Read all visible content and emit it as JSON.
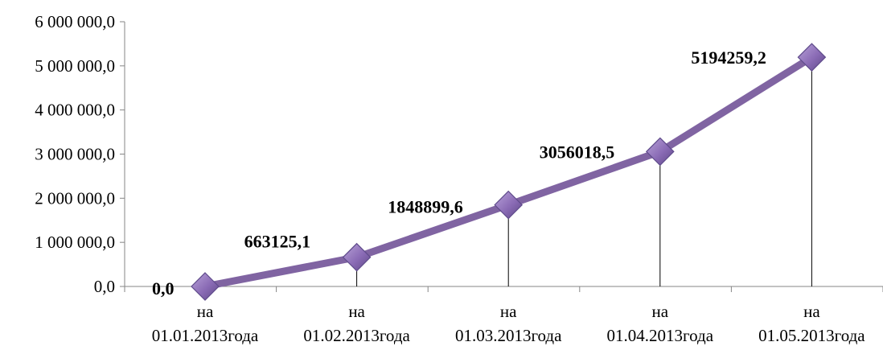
{
  "chart_data": {
    "type": "line",
    "categories": [
      "на 01.01.2013года",
      "на 01.02.2013года",
      "на 01.03.2013года",
      "на 01.04.2013года",
      "на 01.05.2013года"
    ],
    "category_lines": [
      [
        "на",
        "01.01.2013года"
      ],
      [
        "на",
        "01.02.2013года"
      ],
      [
        "на",
        "01.03.2013года"
      ],
      [
        "на",
        "01.04.2013года"
      ],
      [
        "на",
        "01.05.2013года"
      ]
    ],
    "values": [
      0.0,
      663125.1,
      1848899.6,
      3056018.5,
      5194259.2
    ],
    "data_labels": [
      "0,0",
      "663125,1",
      "1848899,6",
      "3056018,5",
      "5194259,2"
    ],
    "y_ticks": [
      0,
      1000000,
      2000000,
      3000000,
      4000000,
      5000000,
      6000000
    ],
    "y_tick_labels": [
      "0,0",
      "1 000 000,0",
      "2 000 000,0",
      "3 000 000,0",
      "4 000 000,0",
      "5 000 000,0",
      "6 000 000,0"
    ],
    "ylim": [
      0,
      6000000
    ],
    "title": "",
    "xlabel": "",
    "ylabel": "",
    "grid": false,
    "legend": "none",
    "drop_lines": true,
    "marker": "diamond",
    "colors": {
      "line": "#8064A2",
      "marker_fill": "#8A6BB5",
      "marker_edge": "#5F4B8B",
      "axis": "#868686",
      "drop_line": "#000000"
    }
  }
}
